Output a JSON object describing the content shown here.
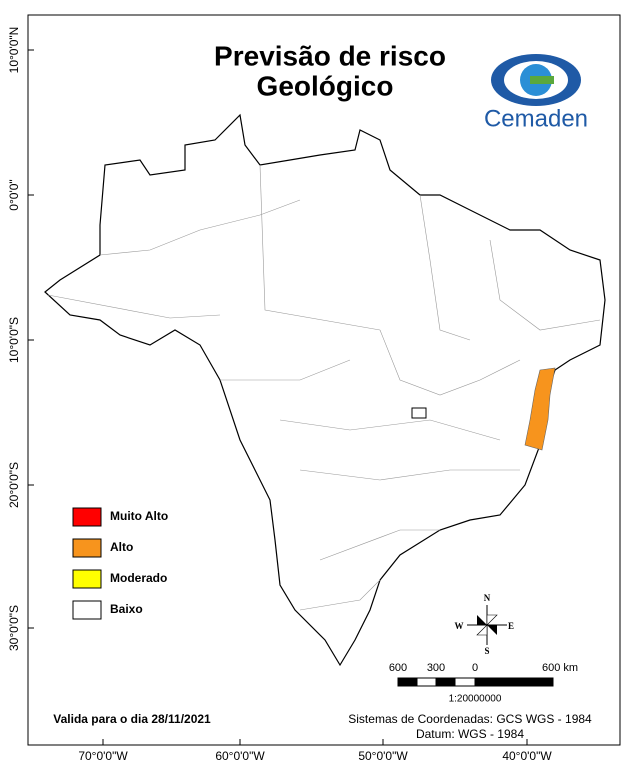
{
  "header": {
    "title_lines": [
      "Previsão de risco",
      "Geológico"
    ],
    "logo_text": "Cemaden"
  },
  "graticule": {
    "latitude_labels": [
      "10°0'0\"N",
      "0°0'0\"",
      "10°0'0\"S",
      "20°0'0\"S",
      "30°0'0\"S"
    ],
    "longitude_labels": [
      "70°0'0\"W",
      "60°0'0\"W",
      "50°0'0\"W",
      "40°0'0\"W"
    ]
  },
  "legend": [
    {
      "label": "Muito Alto",
      "color": "#ff0000"
    },
    {
      "label": "Alto",
      "color": "#f7941d"
    },
    {
      "label": "Moderado",
      "color": "#ffff00"
    },
    {
      "label": "Baixo",
      "color": "#ffffff"
    }
  ],
  "compass": {
    "north": "N",
    "south": "S",
    "east": "E",
    "west": "W"
  },
  "scale_bar": {
    "labels": [
      "600",
      "300",
      "0",
      "600 km"
    ],
    "ratio": "1:20000000"
  },
  "footer": {
    "validity": "Valida para o dia 28/11/2021",
    "coordinate_system": "Sistemas de Coordenadas: GCS WGS - 1984",
    "datum": "Datum: WGS - 1984"
  }
}
